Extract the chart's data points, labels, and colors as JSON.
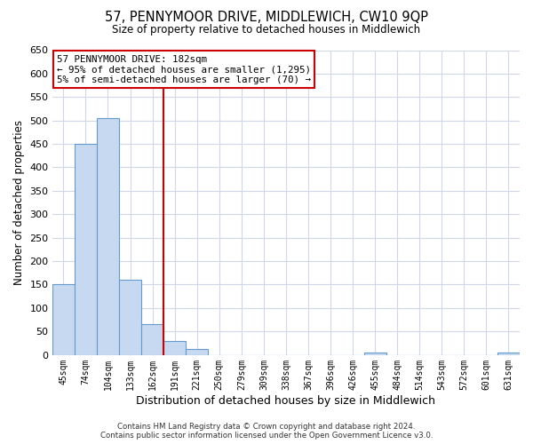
{
  "title": "57, PENNYMOOR DRIVE, MIDDLEWICH, CW10 9QP",
  "subtitle": "Size of property relative to detached houses in Middlewich",
  "xlabel": "Distribution of detached houses by size in Middlewich",
  "ylabel": "Number of detached properties",
  "bar_labels": [
    "45sqm",
    "74sqm",
    "104sqm",
    "133sqm",
    "162sqm",
    "191sqm",
    "221sqm",
    "250sqm",
    "279sqm",
    "309sqm",
    "338sqm",
    "367sqm",
    "396sqm",
    "426sqm",
    "455sqm",
    "484sqm",
    "514sqm",
    "543sqm",
    "572sqm",
    "601sqm",
    "631sqm"
  ],
  "bar_values": [
    150,
    450,
    505,
    160,
    65,
    30,
    12,
    0,
    0,
    0,
    0,
    0,
    0,
    0,
    5,
    0,
    0,
    0,
    0,
    0,
    4
  ],
  "bar_color": "#c6d9f0",
  "bar_edge_color": "#6699cc",
  "ylim": [
    0,
    650
  ],
  "yticks": [
    0,
    50,
    100,
    150,
    200,
    250,
    300,
    350,
    400,
    450,
    500,
    550,
    600,
    650
  ],
  "vline_color": "#cc0000",
  "annotation_title": "57 PENNYMOOR DRIVE: 182sqm",
  "annotation_line1": "← 95% of detached houses are smaller (1,295)",
  "annotation_line2": "5% of semi-detached houses are larger (70) →",
  "annotation_box_color": "#ffffff",
  "annotation_box_edge": "#cc0000",
  "footer1": "Contains HM Land Registry data © Crown copyright and database right 2024.",
  "footer2": "Contains public sector information licensed under the Open Government Licence v3.0.",
  "background_color": "#ffffff",
  "grid_color": "#d0d8e8"
}
